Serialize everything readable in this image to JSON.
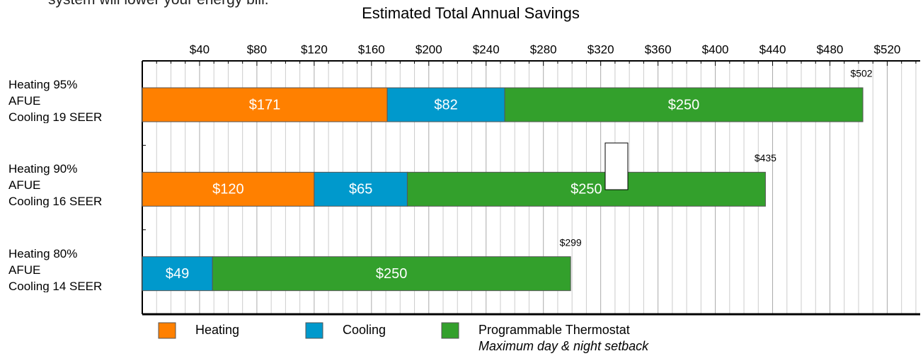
{
  "intro_text": "system will lower your energy bill.",
  "chart_data": {
    "type": "stacked-bar-horizontal",
    "title": "Estimated Total Annual Savings",
    "categories": [
      "Heating 95%\nAFUE\nCooling 19 SEER",
      "Heating 90%\nAFUE\nCooling 16 SEER",
      "Heating 80%\nAFUE\nCooling 14 SEER"
    ],
    "series": [
      {
        "name": "Heating",
        "color": "#ff8000",
        "values": [
          171,
          120,
          null
        ],
        "value_labels": [
          "$171",
          "$120",
          null
        ]
      },
      {
        "name": "Cooling",
        "color": "#0099cc",
        "values": [
          82,
          65,
          49
        ],
        "value_labels": [
          "$82",
          "$65",
          "$49"
        ]
      },
      {
        "name": "Programmable Thermostat",
        "color": "#33a02c",
        "values": [
          250,
          250,
          250
        ],
        "value_labels": [
          "$250",
          "$250",
          "$250"
        ]
      }
    ],
    "totals": [
      502,
      435,
      299
    ],
    "total_labels": [
      "$502",
      "$435",
      "$299"
    ],
    "legend_note": "Maximum day & night setback",
    "xlim": [
      0,
      543
    ],
    "xticks": [
      {
        "value": 40,
        "label": "$40"
      },
      {
        "value": 80,
        "label": "$80"
      },
      {
        "value": 120,
        "label": "$120"
      },
      {
        "value": 160,
        "label": "$160"
      },
      {
        "value": 200,
        "label": "$200"
      },
      {
        "value": 240,
        "label": "$240"
      },
      {
        "value": 280,
        "label": "$280"
      },
      {
        "value": 320,
        "label": "$320"
      },
      {
        "value": 360,
        "label": "$360"
      },
      {
        "value": 400,
        "label": "$400"
      },
      {
        "value": 440,
        "label": "$440"
      },
      {
        "value": 480,
        "label": "$480"
      },
      {
        "value": 520,
        "label": "$520"
      }
    ],
    "minor_xticks": [
      10,
      20,
      30,
      50,
      60,
      70,
      90,
      100,
      110,
      130,
      140,
      150,
      170,
      180,
      190,
      210,
      220,
      230,
      250,
      260,
      270,
      290,
      300,
      310,
      330,
      340,
      350,
      370,
      380,
      390,
      410,
      420,
      430,
      450,
      460,
      470,
      490,
      500,
      510,
      530,
      540
    ],
    "grid": true
  }
}
